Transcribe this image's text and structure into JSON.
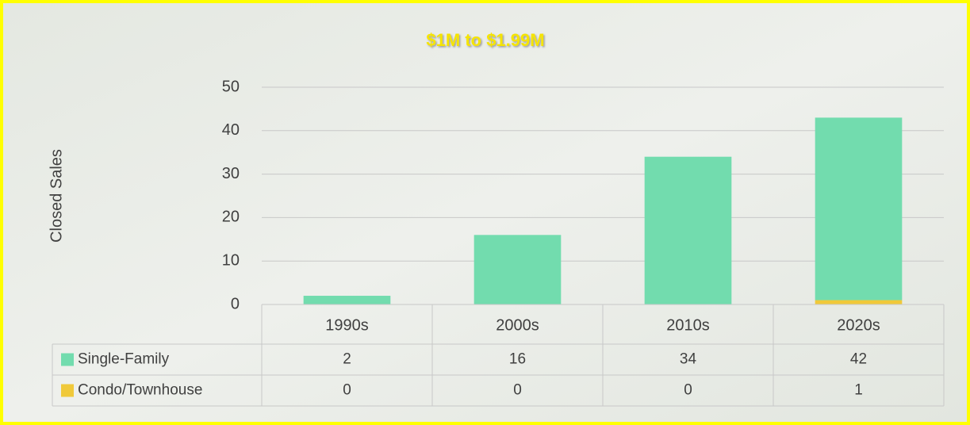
{
  "chart_data": {
    "type": "bar",
    "stacked": true,
    "title": "$1M to $1.99M",
    "y_label": "Closed Sales",
    "categories": [
      "1990s",
      "2000s",
      "2010s",
      "2020s"
    ],
    "series": [
      {
        "name": "Single-Family",
        "color": "#72dcae",
        "values": [
          2,
          16,
          34,
          42
        ]
      },
      {
        "name": "Condo/Townhouse",
        "color": "#f0c93a",
        "values": [
          0,
          0,
          0,
          1
        ]
      }
    ],
    "ylim": [
      0,
      50
    ],
    "yticks": [
      0,
      10,
      20,
      30,
      40,
      50
    ],
    "grid": true,
    "data_table": true
  }
}
